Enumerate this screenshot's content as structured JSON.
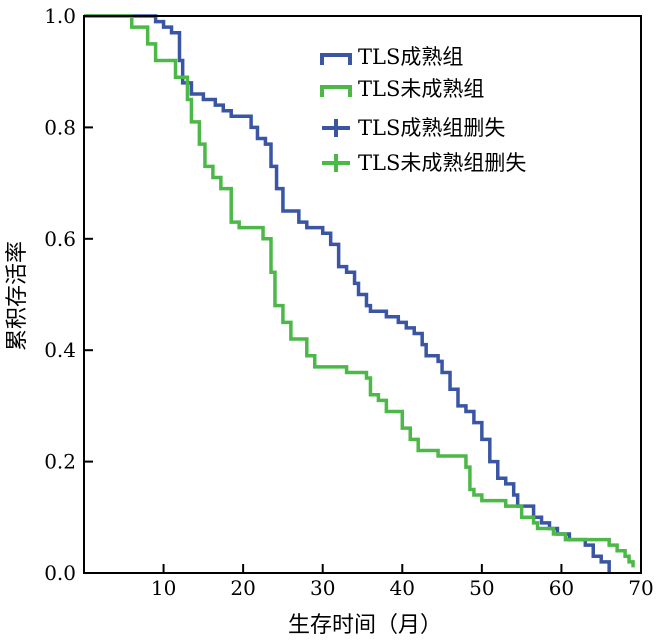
{
  "chart_data": {
    "type": "line",
    "title": "",
    "xlabel": "生存时间（月）",
    "ylabel": "累积存活率",
    "xlim": [
      0,
      70
    ],
    "ylim": [
      0,
      1.0
    ],
    "xticks": [
      10,
      20,
      30,
      40,
      50,
      60,
      70
    ],
    "yticks": [
      0.0,
      0.2,
      0.4,
      0.6,
      0.8,
      1.0
    ],
    "xtick_labels": [
      "10",
      "20",
      "30",
      "40",
      "50",
      "60",
      "70"
    ],
    "ytick_labels": [
      "0.0",
      "0.2",
      "0.4",
      "0.6",
      "0.8",
      "1.0"
    ],
    "legend_position": "top-right",
    "grid": false,
    "series": [
      {
        "name": "TLS成熟组",
        "color": "#3a55a4",
        "steps": [
          [
            0,
            1.0
          ],
          [
            9,
            0.99
          ],
          [
            10,
            0.98
          ],
          [
            11,
            0.97
          ],
          [
            12,
            0.92
          ],
          [
            12.4,
            0.88
          ],
          [
            13.5,
            0.86
          ],
          [
            15,
            0.85
          ],
          [
            16.5,
            0.84
          ],
          [
            17.5,
            0.83
          ],
          [
            18.5,
            0.82
          ],
          [
            21,
            0.8
          ],
          [
            21.8,
            0.78
          ],
          [
            22.8,
            0.77
          ],
          [
            23.5,
            0.73
          ],
          [
            24.2,
            0.69
          ],
          [
            25,
            0.65
          ],
          [
            27,
            0.63
          ],
          [
            28,
            0.62
          ],
          [
            30,
            0.61
          ],
          [
            31,
            0.59
          ],
          [
            32,
            0.55
          ],
          [
            33,
            0.54
          ],
          [
            34,
            0.52
          ],
          [
            34.5,
            0.5
          ],
          [
            35.5,
            0.48
          ],
          [
            36,
            0.47
          ],
          [
            38,
            0.46
          ],
          [
            39.5,
            0.45
          ],
          [
            40.5,
            0.44
          ],
          [
            41.5,
            0.43
          ],
          [
            42.5,
            0.41
          ],
          [
            43,
            0.39
          ],
          [
            44.5,
            0.38
          ],
          [
            45,
            0.36
          ],
          [
            46,
            0.33
          ],
          [
            47,
            0.3
          ],
          [
            48,
            0.29
          ],
          [
            49,
            0.27
          ],
          [
            50,
            0.24
          ],
          [
            51,
            0.2
          ],
          [
            52,
            0.17
          ],
          [
            53,
            0.16
          ],
          [
            54,
            0.14
          ],
          [
            54.5,
            0.12
          ],
          [
            56.5,
            0.1
          ],
          [
            57.5,
            0.09
          ],
          [
            58.5,
            0.08
          ],
          [
            59.5,
            0.07
          ],
          [
            61,
            0.06
          ],
          [
            63,
            0.05
          ],
          [
            64,
            0.03
          ],
          [
            65,
            0.02
          ],
          [
            66,
            0.0
          ]
        ],
        "censored": []
      },
      {
        "name": "TLS未成熟组",
        "color": "#4cb848",
        "steps": [
          [
            0,
            1.0
          ],
          [
            6,
            0.98
          ],
          [
            8,
            0.95
          ],
          [
            9,
            0.92
          ],
          [
            11.5,
            0.89
          ],
          [
            13,
            0.85
          ],
          [
            13.5,
            0.81
          ],
          [
            14.5,
            0.77
          ],
          [
            15.2,
            0.73
          ],
          [
            16.2,
            0.71
          ],
          [
            17.2,
            0.69
          ],
          [
            18.5,
            0.63
          ],
          [
            19.5,
            0.62
          ],
          [
            22.5,
            0.6
          ],
          [
            23.5,
            0.54
          ],
          [
            24,
            0.48
          ],
          [
            25,
            0.45
          ],
          [
            26,
            0.42
          ],
          [
            28,
            0.39
          ],
          [
            29,
            0.37
          ],
          [
            33,
            0.36
          ],
          [
            35.5,
            0.35
          ],
          [
            36,
            0.32
          ],
          [
            37,
            0.31
          ],
          [
            38,
            0.29
          ],
          [
            40,
            0.26
          ],
          [
            41,
            0.24
          ],
          [
            42,
            0.22
          ],
          [
            44.5,
            0.21
          ],
          [
            48,
            0.19
          ],
          [
            48.5,
            0.15
          ],
          [
            49,
            0.14
          ],
          [
            50,
            0.13
          ],
          [
            53,
            0.12
          ],
          [
            55,
            0.1
          ],
          [
            56.5,
            0.09
          ],
          [
            57,
            0.08
          ],
          [
            59,
            0.07
          ],
          [
            60.5,
            0.06
          ],
          [
            66,
            0.05
          ],
          [
            67,
            0.04
          ],
          [
            68,
            0.03
          ],
          [
            68.5,
            0.02
          ],
          [
            69,
            0.01
          ]
        ],
        "censored": []
      }
    ],
    "legend_extra": [
      {
        "name": "TLS成熟组删失",
        "color": "#3a55a4",
        "marker": "plus"
      },
      {
        "name": "TLS未成熟组删失",
        "color": "#4cb848",
        "marker": "plus"
      }
    ]
  }
}
